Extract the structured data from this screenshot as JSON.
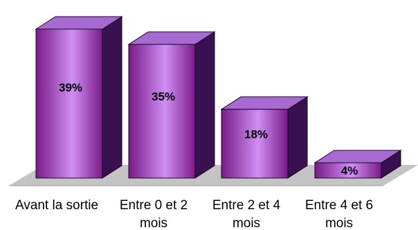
{
  "chart_data": {
    "type": "bar",
    "style": "3d",
    "categories": [
      "Avant la sortie",
      "Entre 0 et 2 mois",
      "Entre 2 et 4 mois",
      "Entre 4 et 6 mois"
    ],
    "category_lines": [
      [
        "Avant la sortie"
      ],
      [
        "Entre 0 et 2",
        "mois"
      ],
      [
        "Entre 2 et 4",
        "mois"
      ],
      [
        "Entre 4 et 6",
        "mois"
      ]
    ],
    "values": [
      39,
      35,
      18,
      4
    ],
    "value_labels": [
      "39%",
      "35%",
      "18%",
      "4%"
    ],
    "unit": "%",
    "title": "",
    "xlabel": "",
    "ylabel": "",
    "ylim": [
      0,
      40
    ],
    "grid": false,
    "legend": "none"
  },
  "colors": {
    "bar_front_light": "#cf8ff5",
    "bar_front_dark": "#7a1a86",
    "bar_top": "#a76ad0",
    "bar_side": "#3a1150",
    "bar_edge": "#1a0522",
    "floor": "#c4c4c4"
  }
}
